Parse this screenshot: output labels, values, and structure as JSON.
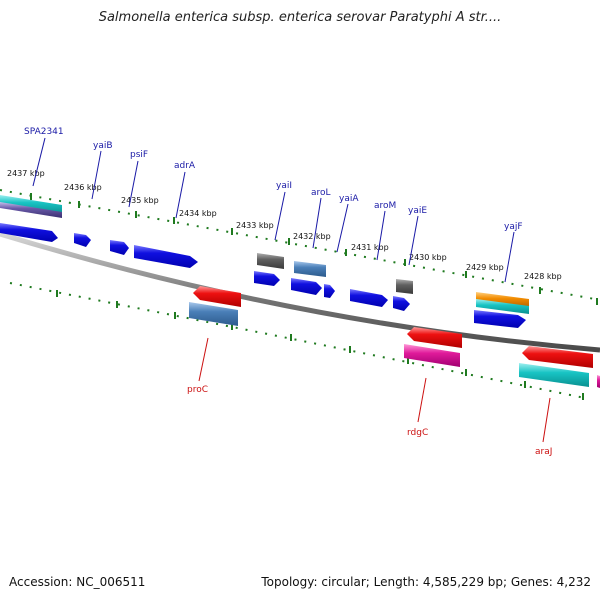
{
  "title": "Salmonella enterica subsp. enterica serovar Paratyphi A str....",
  "footer": {
    "accession": "Accession: NC_006511",
    "stats": "Topology: circular; Length: 4,585,229 bp; Genes: 4,232"
  },
  "colors": {
    "backbone": "#7a7a7a",
    "tick_outer": "#1f7a1f",
    "gene_label_forward": "#1a1aa6",
    "gene_label_reverse": "#cc1111",
    "blue": "#1010e0",
    "red": "#ee1111",
    "steel": "#4a7fb8",
    "gray": "#606060",
    "cyan": "#18c4c4",
    "orange": "#f28c00",
    "magenta": "#e01a9a",
    "purple": "#6a5aa8"
  },
  "scale_labels": [
    "2437 kbp",
    "2436 kbp",
    "2435 kbp",
    "2434 kbp",
    "2433 kbp",
    "2432 kbp",
    "2431 kbp",
    "2430 kbp",
    "2429 kbp",
    "2428 kbp"
  ],
  "genes_forward": [
    {
      "label": "SPA2341",
      "color": "blue"
    },
    {
      "label": "yaiB",
      "color": "blue"
    },
    {
      "label": "psiF",
      "color": "blue"
    },
    {
      "label": "adrA",
      "color": "blue"
    },
    {
      "label": "yaiI",
      "color": "blue"
    },
    {
      "label": "aroL",
      "color": "blue"
    },
    {
      "label": "yaiA",
      "color": "blue"
    },
    {
      "label": "aroM",
      "color": "blue"
    },
    {
      "label": "yaiE",
      "color": "blue"
    },
    {
      "label": "yajF",
      "color": "blue"
    }
  ],
  "genes_reverse": [
    {
      "label": "proC",
      "color": "red"
    },
    {
      "label": "rdgC",
      "color": "red"
    },
    {
      "label": "araJ",
      "color": "red"
    }
  ]
}
